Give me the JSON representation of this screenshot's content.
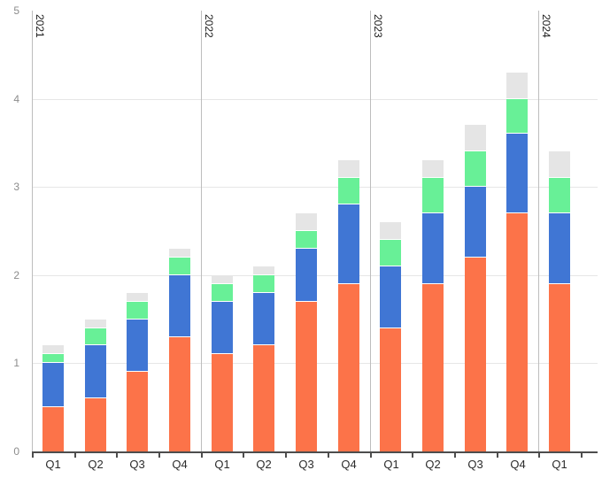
{
  "chart_data": {
    "type": "bar",
    "stacked": true,
    "title": "",
    "xlabel": "",
    "ylabel": "",
    "grid": true,
    "legend": "none",
    "ylim": [
      0,
      5
    ],
    "yticks": [
      0,
      1,
      2,
      3,
      4,
      5
    ],
    "categories": [
      "Q1",
      "Q2",
      "Q3",
      "Q4",
      "Q1",
      "Q2",
      "Q3",
      "Q4",
      "Q1",
      "Q2",
      "Q3",
      "Q4",
      "Q1"
    ],
    "year_groups": [
      {
        "label": "2021",
        "start_index": 0,
        "count": 4
      },
      {
        "label": "2022",
        "start_index": 4,
        "count": 4
      },
      {
        "label": "2023",
        "start_index": 8,
        "count": 4
      },
      {
        "label": "2024",
        "start_index": 12,
        "count": 1
      }
    ],
    "series": [
      {
        "name": "series-orange",
        "color": "#FC7349",
        "values": [
          0.5,
          0.6,
          0.9,
          1.3,
          1.1,
          1.2,
          1.7,
          1.9,
          1.4,
          1.9,
          2.2,
          2.7,
          1.9
        ]
      },
      {
        "name": "series-blue",
        "color": "#4076D4",
        "values": [
          0.5,
          0.6,
          0.6,
          0.7,
          0.6,
          0.6,
          0.6,
          0.9,
          0.7,
          0.8,
          0.8,
          0.9,
          0.8
        ]
      },
      {
        "name": "series-green",
        "color": "#68F097",
        "values": [
          0.1,
          0.2,
          0.2,
          0.2,
          0.2,
          0.2,
          0.2,
          0.3,
          0.3,
          0.4,
          0.4,
          0.4,
          0.4
        ]
      },
      {
        "name": "series-gray",
        "color": "#E5E5E5",
        "values": [
          0.1,
          0.1,
          0.1,
          0.1,
          0.1,
          0.1,
          0.2,
          0.2,
          0.2,
          0.2,
          0.3,
          0.3,
          0.3
        ]
      }
    ],
    "totals": [
      1.2,
      1.5,
      1.8,
      2.3,
      2.0,
      2.1,
      2.7,
      3.3,
      2.6,
      3.3,
      3.7,
      4.3,
      3.4
    ],
    "colors": {
      "axis": "#4D4D4D",
      "gridline": "#E6E6E6",
      "year_separator": "#BDBDBD",
      "y_tick_label": "#8C8C8C",
      "x_tick_label": "#2B2B2B",
      "year_label": "#1A1A1A",
      "background": "#FFFFFF"
    }
  }
}
